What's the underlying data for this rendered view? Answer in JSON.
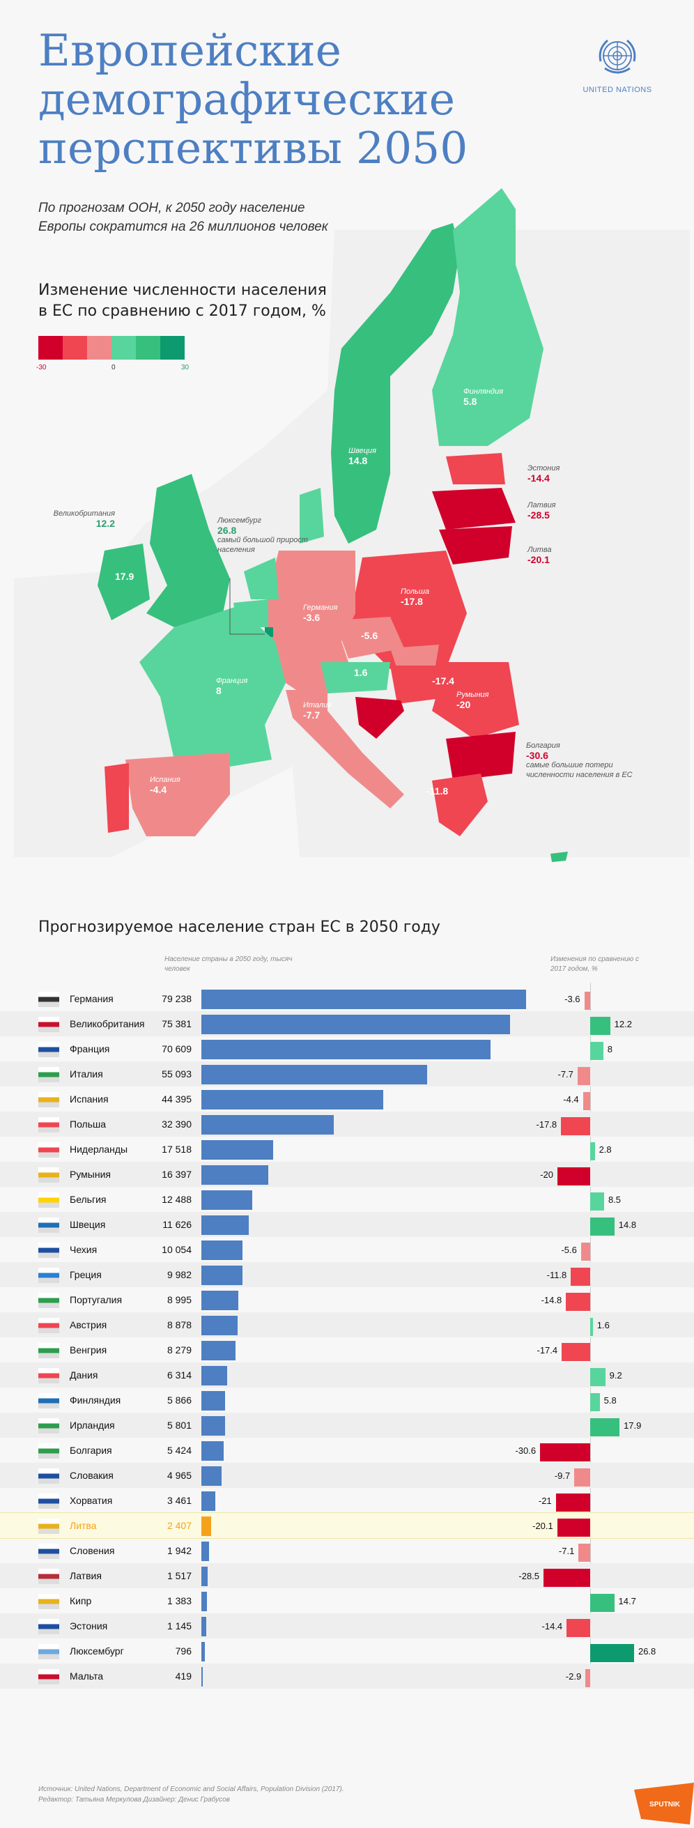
{
  "title_lines": [
    "Европейские",
    "демографические",
    "перспективы 2050"
  ],
  "subtitle": "По прогнозам ООН, к 2050 году население Европы сократится на 26 миллионов человек",
  "un_logo_label": "UNITED NATIONS",
  "legend": {
    "title": "Изменение численности населения в ЕС по сравнению с 2017 годом, %",
    "colors": [
      "#d1002a",
      "#ef4652",
      "#f08a8a",
      "#58d59c",
      "#37bf7e",
      "#0e9a6f"
    ],
    "min_label": "-30",
    "mid_label": "0",
    "max_label": "30"
  },
  "map_labels": {
    "uk": {
      "name": "Великобритания",
      "value": "12.2"
    },
    "uk_value_map": "17.9",
    "luxembourg": {
      "name": "Люксембург",
      "value": "26.8",
      "note": "самый большой прирост населения"
    },
    "sweden": {
      "name": "Швеция",
      "value": "14.8"
    },
    "finland": {
      "name": "Финляндия",
      "value": "5.8"
    },
    "estonia": {
      "name": "Эстония",
      "value": "-14.4"
    },
    "latvia": {
      "name": "Латвия",
      "value": "-28.5"
    },
    "lithuania": {
      "name": "Литва",
      "value": "-20.1"
    },
    "poland": {
      "name": "Польша",
      "value": "-17.8"
    },
    "germany": {
      "name": "Германия",
      "value": "-3.6"
    },
    "czech": {
      "value": "-5.6"
    },
    "austria": {
      "value": "1.6"
    },
    "hungary": {
      "value": "-17.4"
    },
    "romania": {
      "name": "Румыния",
      "value": "-20"
    },
    "bulgaria": {
      "name": "Болгария",
      "value": "-30.6",
      "note": "самые большие потери численности населения в ЕС"
    },
    "france": {
      "name": "Франция",
      "value": "8"
    },
    "italy": {
      "name": "Италия",
      "value": "-7.7"
    },
    "spain": {
      "name": "Испания",
      "value": "-4.4"
    },
    "greece": {
      "value": "-11.8"
    }
  },
  "section_title": "Прогнозируемое население стран ЕС в 2050 году",
  "col_note_pop": "Население страны в 2050 году, тысяч человек",
  "col_note_change": "Изменения по сравнению с 2017 годом, %",
  "chart_data": {
    "type": "bar",
    "categories": [
      "Германия",
      "Великобритания",
      "Франция",
      "Италия",
      "Испания",
      "Польша",
      "Нидерланды",
      "Румыния",
      "Бельгия",
      "Швеция",
      "Чехия",
      "Греция",
      "Португалия",
      "Австрия",
      "Венгрия",
      "Дания",
      "Финляндия",
      "Ирландия",
      "Болгария",
      "Словакия",
      "Хорватия",
      "Литва",
      "Словения",
      "Латвия",
      "Кипр",
      "Эстония",
      "Люксембург",
      "Мальта"
    ],
    "population_labels": [
      "79 238",
      "75 381",
      "70 609",
      "55 093",
      "44 395",
      "32 390",
      "17 518",
      "16 397",
      "12 488",
      "11 626",
      "10 054",
      "9 982",
      "8 995",
      "8 878",
      "8 279",
      "6 314",
      "5 866",
      "5 801",
      "5 424",
      "4 965",
      "3 461",
      "2 407",
      "1 942",
      "1 517",
      "1 383",
      "1 145",
      "796",
      "419"
    ],
    "population": [
      79238,
      75381,
      70609,
      55093,
      44395,
      32390,
      17518,
      16397,
      12488,
      11626,
      10054,
      9982,
      8995,
      8878,
      8279,
      6314,
      5866,
      5801,
      5424,
      4965,
      3461,
      2407,
      1942,
      1517,
      1383,
      1145,
      796,
      419
    ],
    "change_labels": [
      "-3.6",
      "12.2",
      "8",
      "-7.7",
      "-4.4",
      "-17.8",
      "2.8",
      "-20",
      "8.5",
      "14.8",
      "-5.6",
      "-11.8",
      "-14.8",
      "1.6",
      "-17.4",
      "9.2",
      "5.8",
      "17.9",
      "-30.6",
      "-9.7",
      "-21",
      "-20.1",
      "-7.1",
      "-28.5",
      "14.7",
      "-14.4",
      "26.8",
      "-2.9"
    ],
    "change": [
      -3.6,
      12.2,
      8,
      -7.7,
      -4.4,
      -17.8,
      2.8,
      -20,
      8.5,
      14.8,
      -5.6,
      -11.8,
      -14.8,
      1.6,
      -17.4,
      9.2,
      5.8,
      17.9,
      -30.6,
      -9.7,
      -21,
      -20.1,
      -7.1,
      -28.5,
      14.7,
      -14.4,
      26.8,
      -2.9
    ],
    "highlight": "Литва",
    "bar_color": "#4d7fc2",
    "highlight_color": "#f5a21b"
  },
  "footer": {
    "source": "Источник: United Nations, Department of Economic and Social Affairs, Population Division (2017).",
    "credits": "Редактор: Татьяна Меркулова   Дизайнер: Денис Грабусов"
  },
  "sputnik_label": "SPUTNIK"
}
